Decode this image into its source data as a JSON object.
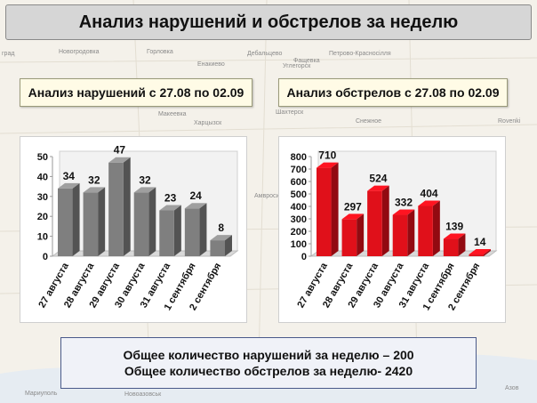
{
  "title": "Анализ нарушений и обстрелов за неделю",
  "left": {
    "subtitle": "Анализ нарушений с 27.08 по 02.09"
  },
  "right": {
    "subtitle": "Анализ обстрелов с 27.08 по 02.09"
  },
  "footer": {
    "line1": "Общее количество нарушений за неделю – 200",
    "line2": "Общее количество обстрелов за неделю- 2420"
  },
  "map_labels": [
    "град",
    "Новогродовка",
    "Горловка",
    "Дебальцево",
    "Петрово-Красносілля",
    "Енакиево",
    "Шахтерск",
    "Макеевка",
    "Харцызск",
    "Rovenki",
    "Снежное",
    "Амвросиевка",
    "Мариуполь",
    "Новоазовськ",
    "Азов",
    "Углегорск",
    "Фащевка"
  ],
  "colors": {
    "left_bar": "#7f7f7f",
    "right_bar": "#e0101a"
  },
  "chart_data": [
    {
      "type": "bar",
      "title": "Анализ нарушений с 27.08 по 02.09",
      "categories": [
        "27 августа",
        "28 августа",
        "29 августа",
        "30 августа",
        "31 августа",
        "1 сентября",
        "2 сентября"
      ],
      "values": [
        34,
        32,
        47,
        32,
        23,
        24,
        8
      ],
      "ylim": [
        0,
        50
      ],
      "yticks": [
        0,
        10,
        20,
        30,
        40,
        50
      ],
      "xlabel": "",
      "ylabel": "",
      "grid": false
    },
    {
      "type": "bar",
      "title": "Анализ обстрелов с 27.08 по 02.09",
      "categories": [
        "27 августа",
        "28 августа",
        "29 августа",
        "30 августа",
        "31 августа",
        "1 сентября",
        "2 сентября"
      ],
      "values": [
        710,
        297,
        524,
        332,
        404,
        139,
        14
      ],
      "ylim": [
        0,
        800
      ],
      "yticks": [
        0,
        100,
        200,
        300,
        400,
        500,
        600,
        700,
        800
      ],
      "xlabel": "",
      "ylabel": "",
      "grid": false
    }
  ]
}
